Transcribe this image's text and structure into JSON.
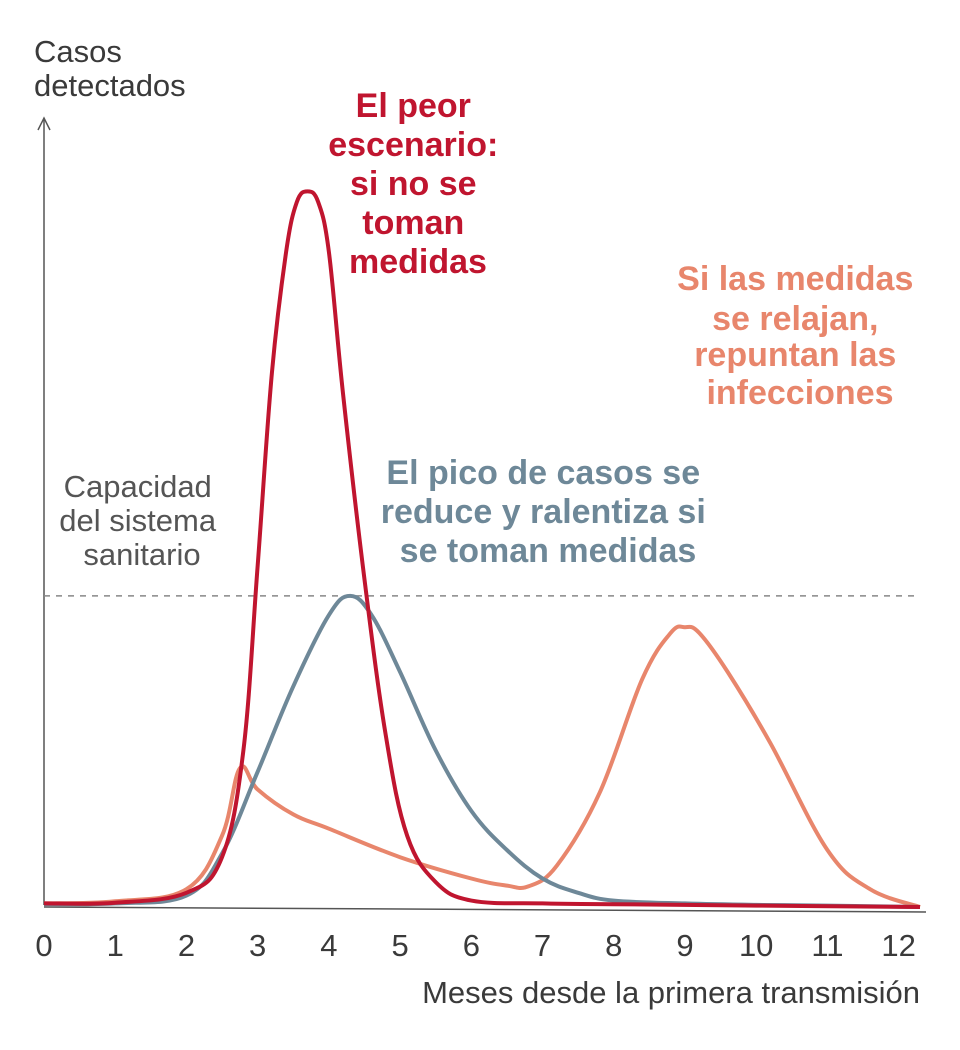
{
  "chart_data": {
    "type": "line",
    "title": "",
    "ylabel": [
      "Casos",
      "detectados"
    ],
    "xlabel": "Meses desde la primera transmisión",
    "xlim": [
      0,
      12.3
    ],
    "ylim": [
      0,
      100
    ],
    "x_ticks": [
      "0",
      "1",
      "2",
      "3",
      "4",
      "5",
      "6",
      "7",
      "8",
      "9",
      "10",
      "11",
      "12"
    ],
    "capacity": {
      "value": 43.7,
      "label": [
        "Capacidad",
        "del sistema",
        "sanitario"
      ]
    },
    "series": [
      {
        "name": "El peor escenario: si no se toman medidas",
        "color": "#c0152f",
        "x": [
          0,
          1,
          2,
          2.5,
          2.8,
          3.0,
          3.2,
          3.4,
          3.55,
          3.7,
          3.85,
          4.0,
          4.2,
          4.5,
          4.8,
          5.1,
          5.5,
          6,
          7,
          8,
          10,
          12.3
        ],
        "y": [
          0.5,
          0.6,
          2,
          7,
          22,
          48,
          75,
          92,
          99,
          100.5,
          99,
          92,
          72,
          46,
          24,
          10,
          3.5,
          0.9,
          0.5,
          0.4,
          0.2,
          0
        ]
      },
      {
        "name": "El pico de casos se reduce y ralentiza si se toman medidas",
        "color": "#6e8898",
        "x": [
          0,
          1,
          2,
          2.5,
          3,
          3.5,
          4,
          4.3,
          4.6,
          5,
          5.5,
          6,
          6.5,
          7,
          7.5,
          8,
          9,
          10,
          11,
          12.3
        ],
        "y": [
          0.4,
          0.5,
          1.6,
          7.5,
          19,
          31,
          41,
          43.7,
          41,
          33,
          22,
          13.5,
          8,
          4,
          2,
          0.9,
          0.5,
          0.3,
          0.2,
          0
        ]
      },
      {
        "name": "Si las medidas se relajan, repuntan las infecciones",
        "color": "#e8866c",
        "x": [
          0,
          1,
          2,
          2.5,
          2.75,
          3,
          3.5,
          4,
          5,
          6,
          6.5,
          6.8,
          7.2,
          7.8,
          8.4,
          8.8,
          9.0,
          9.2,
          9.6,
          10.2,
          11,
          11.6,
          12.3
        ],
        "y": [
          0.5,
          0.8,
          2.5,
          10,
          19.5,
          16.5,
          13,
          11,
          7,
          4,
          3,
          2.9,
          5.8,
          16,
          32,
          38.5,
          39.3,
          38.5,
          33,
          23,
          8,
          2.5,
          0
        ]
      }
    ],
    "annotations": [
      {
        "series": 0,
        "lines": [
          "El peor",
          "escenario:",
          "si no se",
          "toman",
          "medidas"
        ]
      },
      {
        "series": 1,
        "lines": [
          "El pico de casos se",
          "reduce y ralentiza si",
          "se toman medidas"
        ]
      },
      {
        "series": 2,
        "lines": [
          "Si las medidas",
          "se relajan,",
          "repuntan las",
          "infecciones"
        ]
      }
    ]
  }
}
